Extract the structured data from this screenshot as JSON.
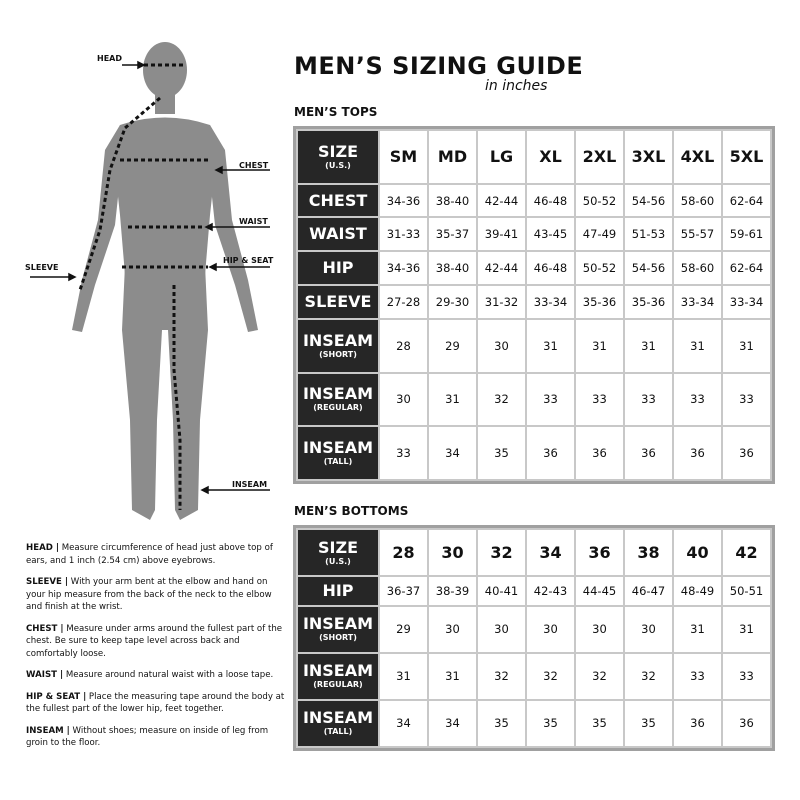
{
  "title": "MEN’S SIZING GUIDE",
  "subtitle": "in inches",
  "figure_labels": {
    "head": "HEAD",
    "chest": "CHEST",
    "waist": "WAIST",
    "sleeve": "SLEEVE",
    "hip_seat": "HIP & SEAT",
    "inseam": "INSEAM"
  },
  "notes": [
    {
      "term": "HEAD |",
      "text": " Measure circumference of head just above top of ears, and 1 inch (2.54 cm) above eyebrows."
    },
    {
      "term": "SLEEVE |",
      "text": " With your arm bent at the elbow and hand on your hip measure from the back of the neck to the elbow and finish at the wrist."
    },
    {
      "term": "CHEST |",
      "text": " Measure under arms around the fullest part of the chest. Be sure to keep tape level across back and comfortably loose."
    },
    {
      "term": "WAIST |",
      "text": " Measure around natural waist with a loose tape."
    },
    {
      "term": "HIP & SEAT |",
      "text": " Place the measuring tape around the body at the fullest part of the lower hip, feet together."
    },
    {
      "term": "INSEAM |",
      "text": " Without shoes; measure on inside of leg from groin to the floor."
    }
  ],
  "tops": {
    "heading": "MEN’S TOPS",
    "size_label": "SIZE",
    "size_sub": "(U.S.)",
    "columns": [
      "SM",
      "MD",
      "LG",
      "XL",
      "2XL",
      "3XL",
      "4XL",
      "5XL"
    ],
    "rows": [
      {
        "label": "CHEST",
        "sub": "",
        "values": [
          "34-36",
          "38-40",
          "42-44",
          "46-48",
          "50-52",
          "54-56",
          "58-60",
          "62-64"
        ]
      },
      {
        "label": "WAIST",
        "sub": "",
        "values": [
          "31-33",
          "35-37",
          "39-41",
          "43-45",
          "47-49",
          "51-53",
          "55-57",
          "59-61"
        ]
      },
      {
        "label": "HIP",
        "sub": "",
        "values": [
          "34-36",
          "38-40",
          "42-44",
          "46-48",
          "50-52",
          "54-56",
          "58-60",
          "62-64"
        ]
      },
      {
        "label": "SLEEVE",
        "sub": "",
        "values": [
          "27-28",
          "29-30",
          "31-32",
          "33-34",
          "35-36",
          "35-36",
          "33-34",
          "33-34"
        ]
      },
      {
        "label": "INSEAM",
        "sub": "(SHORT)",
        "values": [
          "28",
          "29",
          "30",
          "31",
          "31",
          "31",
          "31",
          "31"
        ]
      },
      {
        "label": "INSEAM",
        "sub": "(REGULAR)",
        "values": [
          "30",
          "31",
          "32",
          "33",
          "33",
          "33",
          "33",
          "33"
        ]
      },
      {
        "label": "INSEAM",
        "sub": "(TALL)",
        "values": [
          "33",
          "34",
          "35",
          "36",
          "36",
          "36",
          "36",
          "36"
        ]
      }
    ]
  },
  "bottoms": {
    "heading": "MEN’S BOTTOMS",
    "size_label": "SIZE",
    "size_sub": "(U.S.)",
    "columns": [
      "28",
      "30",
      "32",
      "34",
      "36",
      "38",
      "40",
      "42"
    ],
    "rows": [
      {
        "label": "HIP",
        "sub": "",
        "values": [
          "36-37",
          "38-39",
          "40-41",
          "42-43",
          "44-45",
          "46-47",
          "48-49",
          "50-51"
        ]
      },
      {
        "label": "INSEAM",
        "sub": "(SHORT)",
        "values": [
          "29",
          "30",
          "30",
          "30",
          "30",
          "30",
          "31",
          "31"
        ]
      },
      {
        "label": "INSEAM",
        "sub": "(REGULAR)",
        "values": [
          "31",
          "31",
          "32",
          "32",
          "32",
          "32",
          "33",
          "33"
        ]
      },
      {
        "label": "INSEAM",
        "sub": "(TALL)",
        "values": [
          "34",
          "34",
          "35",
          "35",
          "35",
          "35",
          "36",
          "36"
        ]
      }
    ]
  }
}
